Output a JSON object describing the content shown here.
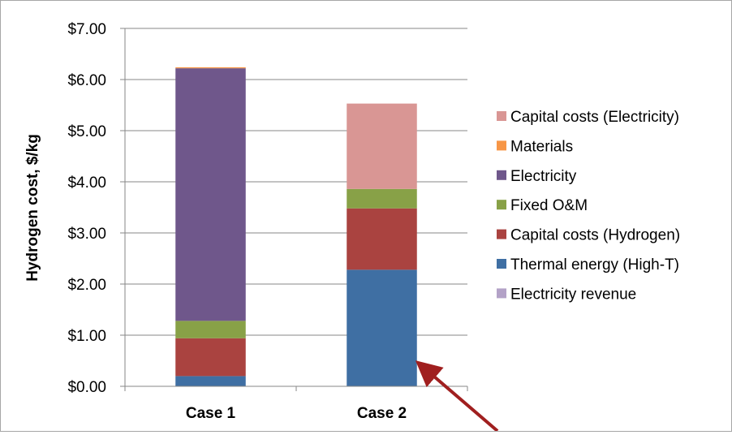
{
  "chart_data": {
    "type": "bar",
    "stacked": true,
    "title": "",
    "xlabel": "",
    "ylabel": "Hydrogen cost, $/kg",
    "ylim": [
      0,
      7
    ],
    "yticks": [
      "$0.00",
      "$1.00",
      "$2.00",
      "$3.00",
      "$4.00",
      "$5.00",
      "$6.00",
      "$7.00"
    ],
    "grid": true,
    "legend_position": "right",
    "categories": [
      "Case 1",
      "Case 2"
    ],
    "series": [
      {
        "name": "Electricity revenue",
        "values": [
          0,
          0
        ],
        "color": "#b3a2c7"
      },
      {
        "name": "Thermal energy (High-T)",
        "values": [
          0.2,
          2.28
        ],
        "color": "#3f6fa3"
      },
      {
        "name": "Capital costs (Hydrogen)",
        "values": [
          0.74,
          1.2
        ],
        "color": "#aa4340"
      },
      {
        "name": "Fixed O&M",
        "values": [
          0.34,
          0.38
        ],
        "color": "#88a147"
      },
      {
        "name": "Electricity",
        "values": [
          4.94,
          0
        ],
        "color": "#6f578b"
      },
      {
        "name": "Materials",
        "values": [
          0.02,
          0
        ],
        "color": "#f79646"
      },
      {
        "name": "Capital costs (Electricity)",
        "values": [
          0,
          1.67
        ],
        "color": "#d99694"
      }
    ],
    "annotation": {
      "type": "arrow",
      "color": "#a01f1f",
      "target": "Case 2 Thermal energy (High-T)"
    }
  }
}
